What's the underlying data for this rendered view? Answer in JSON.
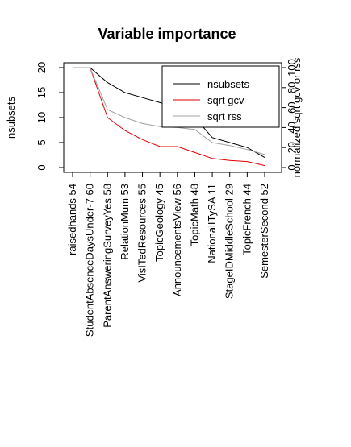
{
  "chart_data": {
    "type": "line",
    "title": "Variable importance",
    "ylabel_left": "nsubsets",
    "ylabel_right": "normalized sqrt gcv or rss",
    "ylim_left": [
      0,
      20
    ],
    "ylim_right": [
      0,
      100
    ],
    "yticks_left": [
      "0",
      "5",
      "10",
      "15",
      "20"
    ],
    "yticks_right": [
      "0",
      "20",
      "40",
      "60",
      "80",
      "100"
    ],
    "categories": [
      "raisedhands  54",
      "StudentAbsenceDaysUnder-7  60",
      "ParentAnsweringSurveyYes  58",
      "RelationMum  53",
      "VisITedResources  55",
      "TopicGeology  45",
      "AnnouncementsView  56",
      "TopicMath  48",
      "NationalITySA  11",
      "StageIDMiddleSchool  29",
      "TopicFrench  44",
      "SemesterSecond  52"
    ],
    "series": [
      {
        "name": "nsubsets",
        "color": "#000000",
        "axis": "left",
        "values": [
          20,
          20,
          17,
          15,
          14,
          13,
          12,
          10,
          6,
          5,
          4,
          2
        ]
      },
      {
        "name": "sqrt gcv",
        "color": "#e00000",
        "axis": "right",
        "values": [
          100,
          100,
          50,
          37,
          28,
          21,
          21,
          15,
          9,
          7,
          6,
          2
        ]
      },
      {
        "name": "sqrt rss",
        "color": "#a0a0a0",
        "axis": "right",
        "values": [
          100,
          100,
          58,
          50,
          44,
          41,
          40,
          38,
          25,
          22,
          18,
          13
        ]
      }
    ],
    "legend_position": "top-right",
    "grid": false
  }
}
